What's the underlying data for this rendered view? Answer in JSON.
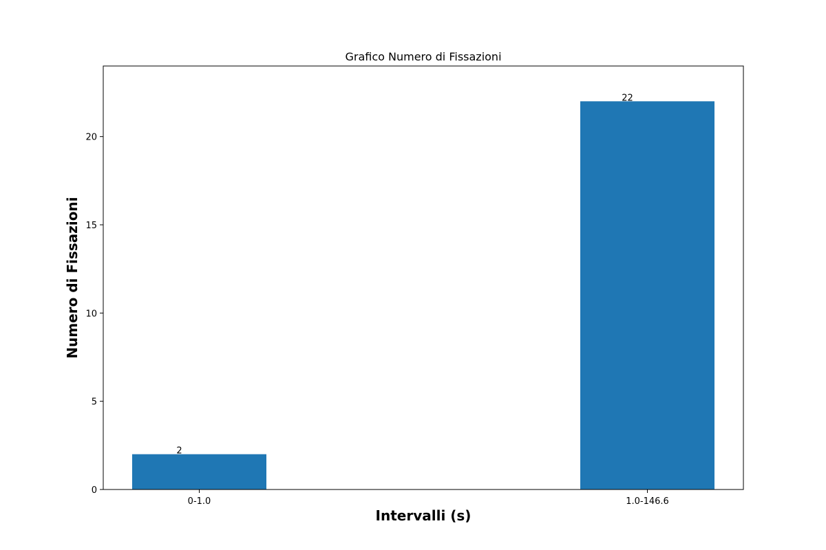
{
  "chart_data": {
    "type": "bar",
    "title": "Grafico Numero di Fissazioni",
    "xlabel": "Intervalli (s)",
    "ylabel": "Numero di Fissazioni",
    "categories": [
      "0-1.0",
      "1.0-146.6"
    ],
    "values": [
      2,
      22
    ],
    "data_labels": [
      "2",
      "22"
    ],
    "yticks": [
      0,
      5,
      10,
      15,
      20
    ],
    "ytick_labels": [
      "0",
      "5",
      "10",
      "15",
      "20"
    ],
    "ylim": [
      0,
      24
    ],
    "grid": false,
    "legend": "none",
    "colors": {
      "bar": "#1f77b4",
      "frame": "#000000",
      "text": "#000000",
      "background": "#ffffff"
    }
  }
}
